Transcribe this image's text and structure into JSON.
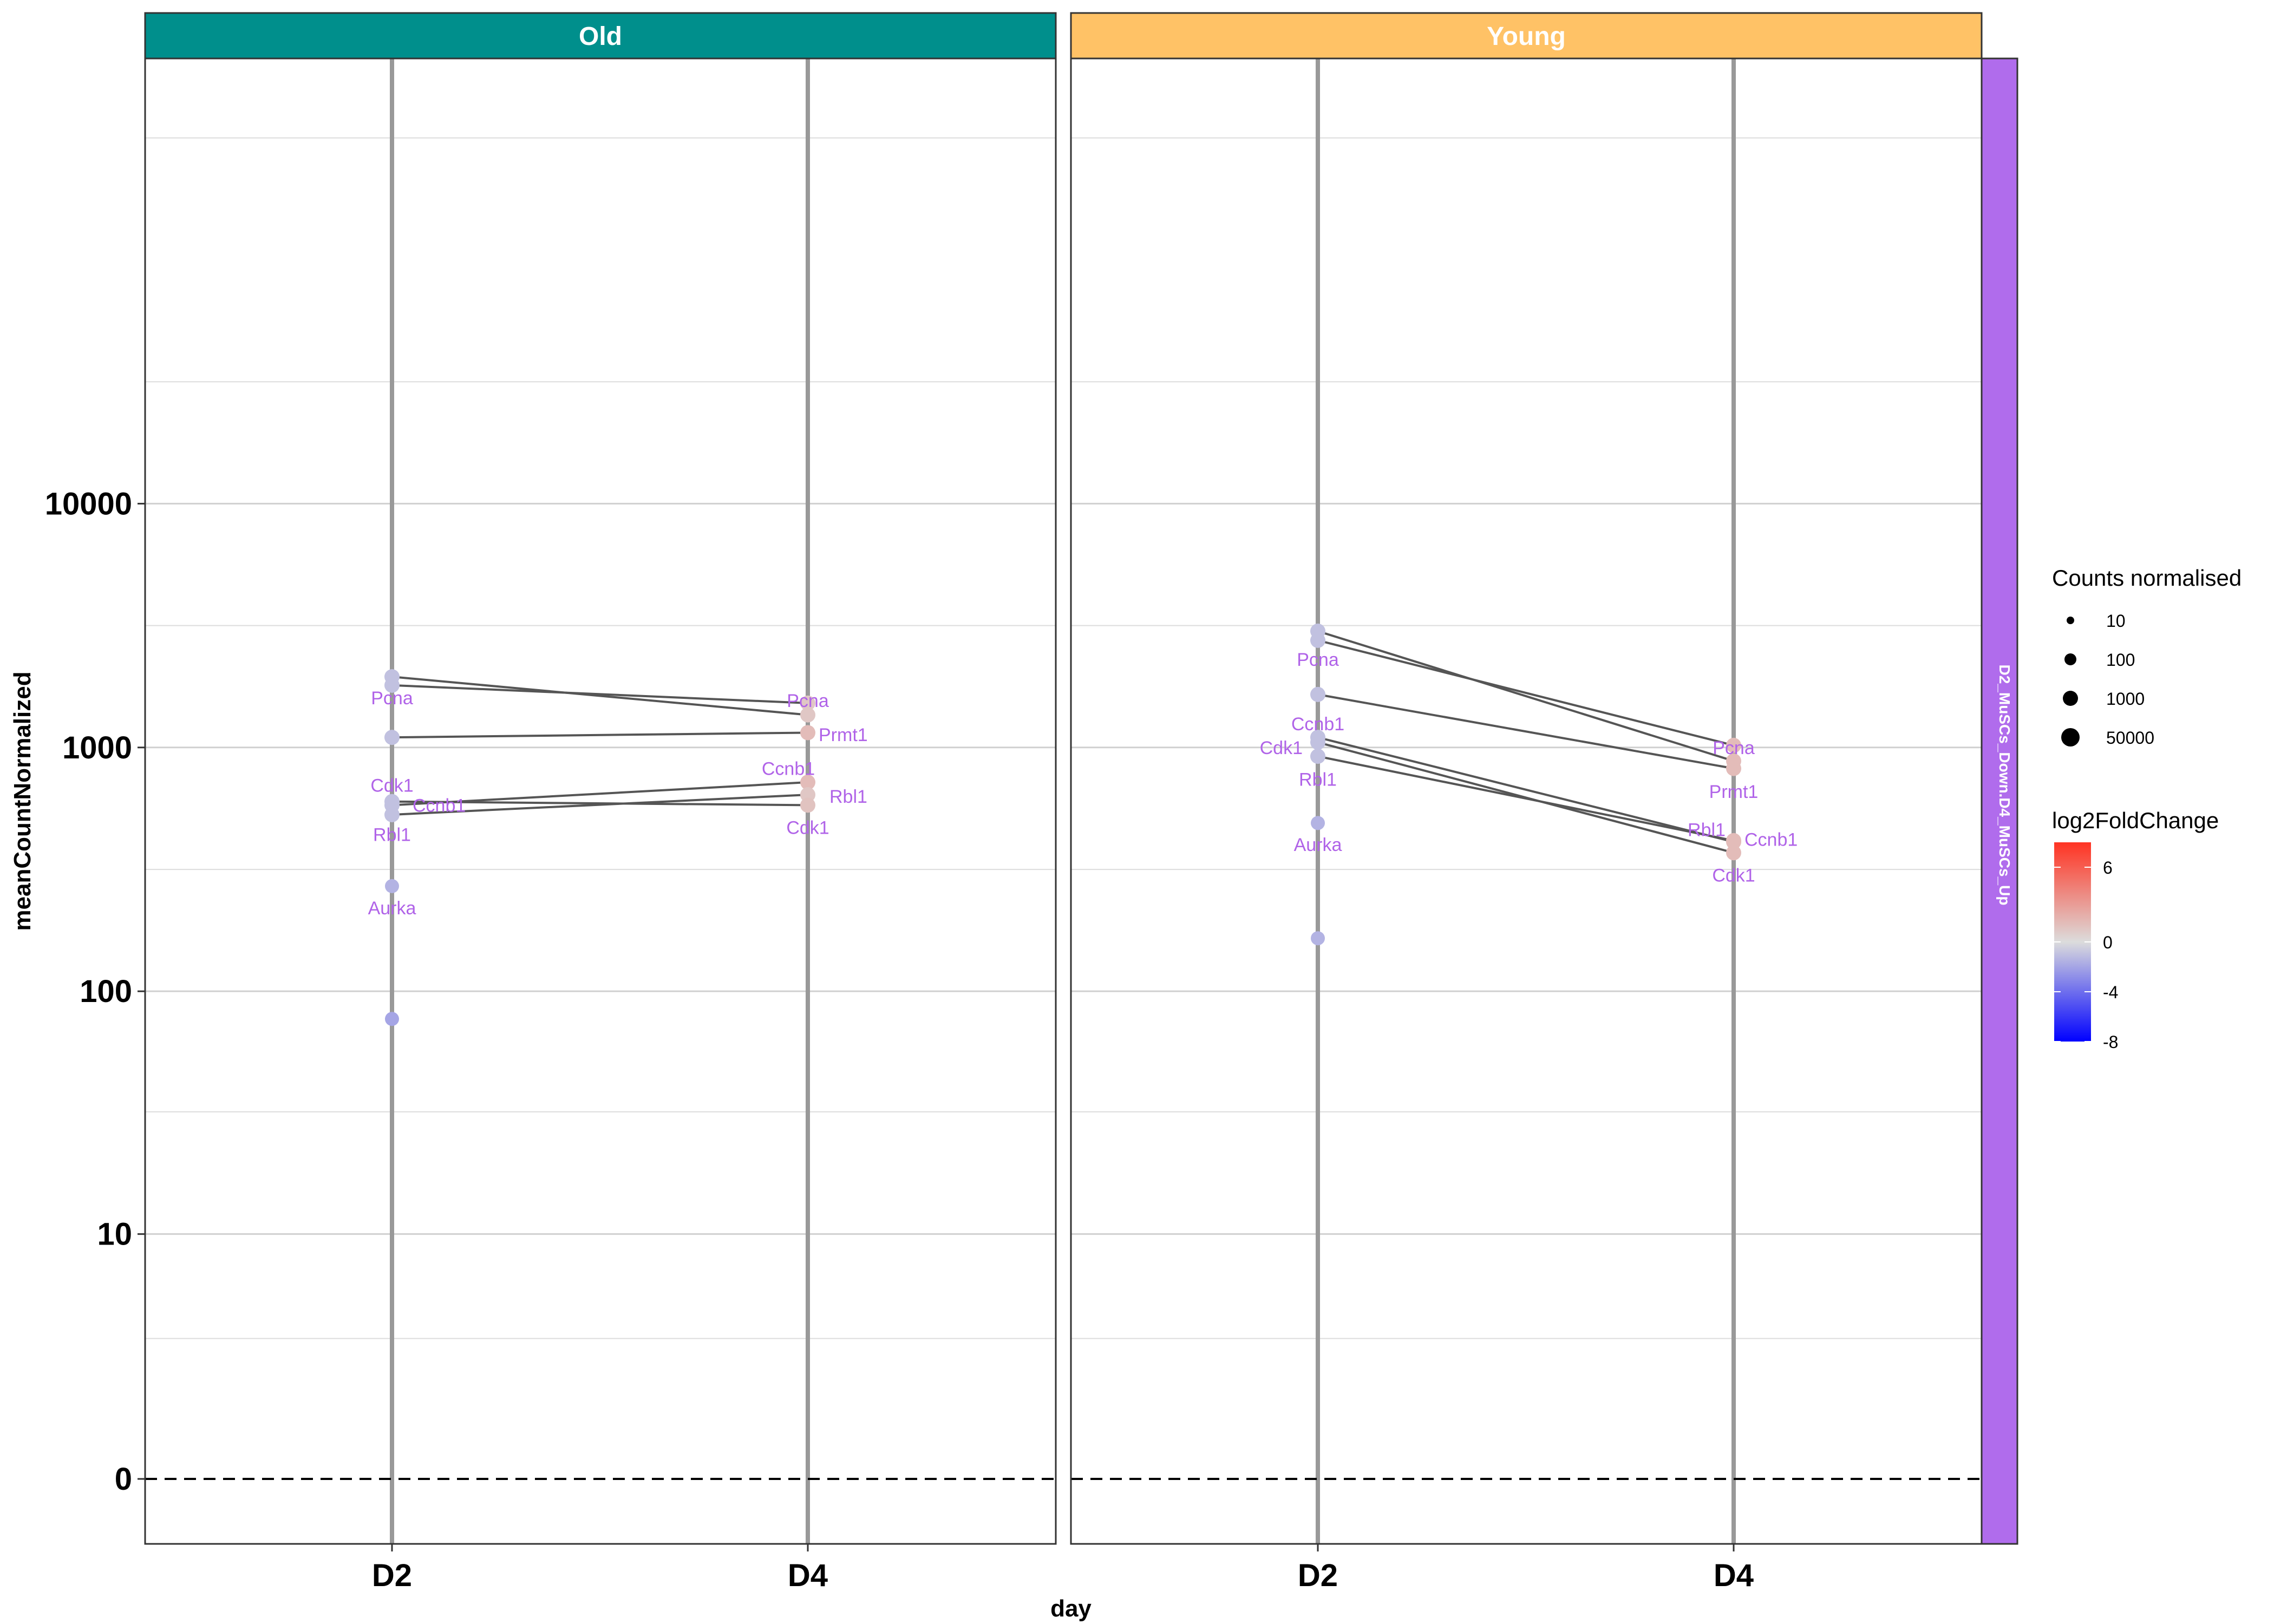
{
  "chart_data": {
    "type": "line",
    "facet_strips": {
      "columns": [
        {
          "label": "Old",
          "color": "#008f8c"
        },
        {
          "label": "Young",
          "color": "#ffc266"
        }
      ],
      "row": {
        "label": "D2_MuSCs_Down.D4_MuSCs_Up",
        "color": "#b06cec"
      }
    },
    "xlabel": "day",
    "ylabel": "meanCountNormalized",
    "x_categories": [
      "D2",
      "D4"
    ],
    "y_scale": "pseudo-log10",
    "y_ticks": [
      0,
      10,
      100,
      1000,
      10000
    ],
    "y_tick_labels": [
      "0",
      "10",
      "100",
      "1000",
      "10000"
    ],
    "ylim": [
      -0.3,
      1000000
    ],
    "reference_line": {
      "y": 0,
      "style": "dashed"
    },
    "panels": [
      {
        "facet": "Old",
        "d2_extra_points": [
          {
            "y": 270,
            "l2fc": -1.5
          },
          {
            "y": 77,
            "l2fc": -2.0
          }
        ],
        "genes": [
          {
            "name": "Pcna",
            "d2": 1950,
            "d4": 1360,
            "l2fc_d2": -1.0,
            "l2fc_d4": 1.0
          },
          {
            "name": "Pcna",
            "d2": 1800,
            "d4": 1520,
            "l2fc_d2": -1.0,
            "l2fc_d4": 1.0
          },
          {
            "name": "Prmt1",
            "d2": 1100,
            "d4": 1150,
            "l2fc_d2": -1.0,
            "l2fc_d4": 1.5
          },
          {
            "name": "Ccnb1",
            "d2": 580,
            "d4": 720,
            "l2fc_d2": -1.0,
            "l2fc_d4": 1.5
          },
          {
            "name": "Rbl1",
            "d2": 530,
            "d4": 640,
            "l2fc_d2": -1.0,
            "l2fc_d4": 1.0
          },
          {
            "name": "Cdk1",
            "d2": 600,
            "d4": 580,
            "l2fc_d2": -1.0,
            "l2fc_d4": 1.2
          }
        ]
      },
      {
        "facet": "Young",
        "d2_extra_points": [
          {
            "y": 490,
            "l2fc": -1.5
          },
          {
            "y": 165,
            "l2fc": -1.5
          }
        ],
        "genes": [
          {
            "name": "Pcna",
            "d2": 3000,
            "d4": 880,
            "l2fc_d2": -1.0,
            "l2fc_d4": 1.5
          },
          {
            "name": "Pcna",
            "d2": 2750,
            "d4": 1020,
            "l2fc_d2": -1.0,
            "l2fc_d4": 1.5
          },
          {
            "name": "Prmt1",
            "d2": 1650,
            "d4": 820,
            "l2fc_d2": -1.0,
            "l2fc_d4": 1.5
          },
          {
            "name": "Ccnb1",
            "d2": 1100,
            "d4": 410,
            "l2fc_d2": -1.0,
            "l2fc_d4": 1.5
          },
          {
            "name": "Rbl1",
            "d2": 920,
            "d4": 415,
            "l2fc_d2": -1.0,
            "l2fc_d4": 1.5
          },
          {
            "name": "Cdk1",
            "d2": 1050,
            "d4": 370,
            "l2fc_d2": -1.0,
            "l2fc_d4": 1.5
          }
        ]
      }
    ],
    "gene_labels": [
      {
        "facet": "Old",
        "day": "D2",
        "text": "Pcna",
        "y": 1600
      },
      {
        "facet": "Old",
        "day": "D2",
        "text": "Cdk1",
        "y": 700
      },
      {
        "facet": "Old",
        "day": "D2",
        "text": "Ccnb1",
        "y": 580
      },
      {
        "facet": "Old",
        "day": "D2",
        "text": "Rbl1",
        "y": 440
      },
      {
        "facet": "Old",
        "day": "D2",
        "text": "Aurka",
        "y": 220
      },
      {
        "facet": "Old",
        "day": "D4",
        "text": "Pcna",
        "y": 1560
      },
      {
        "facet": "Old",
        "day": "D4",
        "text": "Prmt1",
        "y": 1130
      },
      {
        "facet": "Old",
        "day": "D4",
        "text": "Ccnb1",
        "y": 820
      },
      {
        "facet": "Old",
        "day": "D4",
        "text": "Rbl1",
        "y": 630
      },
      {
        "facet": "Old",
        "day": "D4",
        "text": "Cdk1",
        "y": 470
      },
      {
        "facet": "Young",
        "day": "D2",
        "text": "Pcna",
        "y": 2300
      },
      {
        "facet": "Young",
        "day": "D2",
        "text": "Ccnb1",
        "y": 1250
      },
      {
        "facet": "Young",
        "day": "D2",
        "text": "Cdk1",
        "y": 1000
      },
      {
        "facet": "Young",
        "day": "D2",
        "text": "Rbl1",
        "y": 740
      },
      {
        "facet": "Young",
        "day": "D2",
        "text": "Aurka",
        "y": 400
      },
      {
        "facet": "Young",
        "day": "D4",
        "text": "Pcna",
        "y": 1000
      },
      {
        "facet": "Young",
        "day": "D4",
        "text": "Prmt1",
        "y": 660
      },
      {
        "facet": "Young",
        "day": "D4",
        "text": "Rbl1",
        "y": 460
      },
      {
        "facet": "Young",
        "day": "D4",
        "text": "Ccnb1",
        "y": 420
      },
      {
        "facet": "Young",
        "day": "D4",
        "text": "Cdk1",
        "y": 300
      }
    ],
    "legend": {
      "placement": "right",
      "size": {
        "title": "Counts normalised",
        "entries": [
          "10",
          "100",
          "1000",
          "50000"
        ]
      },
      "color": {
        "title": "log2FoldChange",
        "ticks": [
          6,
          0,
          -4,
          -8
        ],
        "tick_labels": [
          "6",
          "0",
          "-4",
          "-8"
        ],
        "range": [
          -8,
          8
        ],
        "gradient": [
          "#0000ff",
          "#dcdcdc",
          "#ff3322"
        ]
      }
    },
    "colors": {
      "label": "#b063e8",
      "connector": "#555555",
      "day_line": "#999999",
      "grid": "#dddddd"
    }
  }
}
